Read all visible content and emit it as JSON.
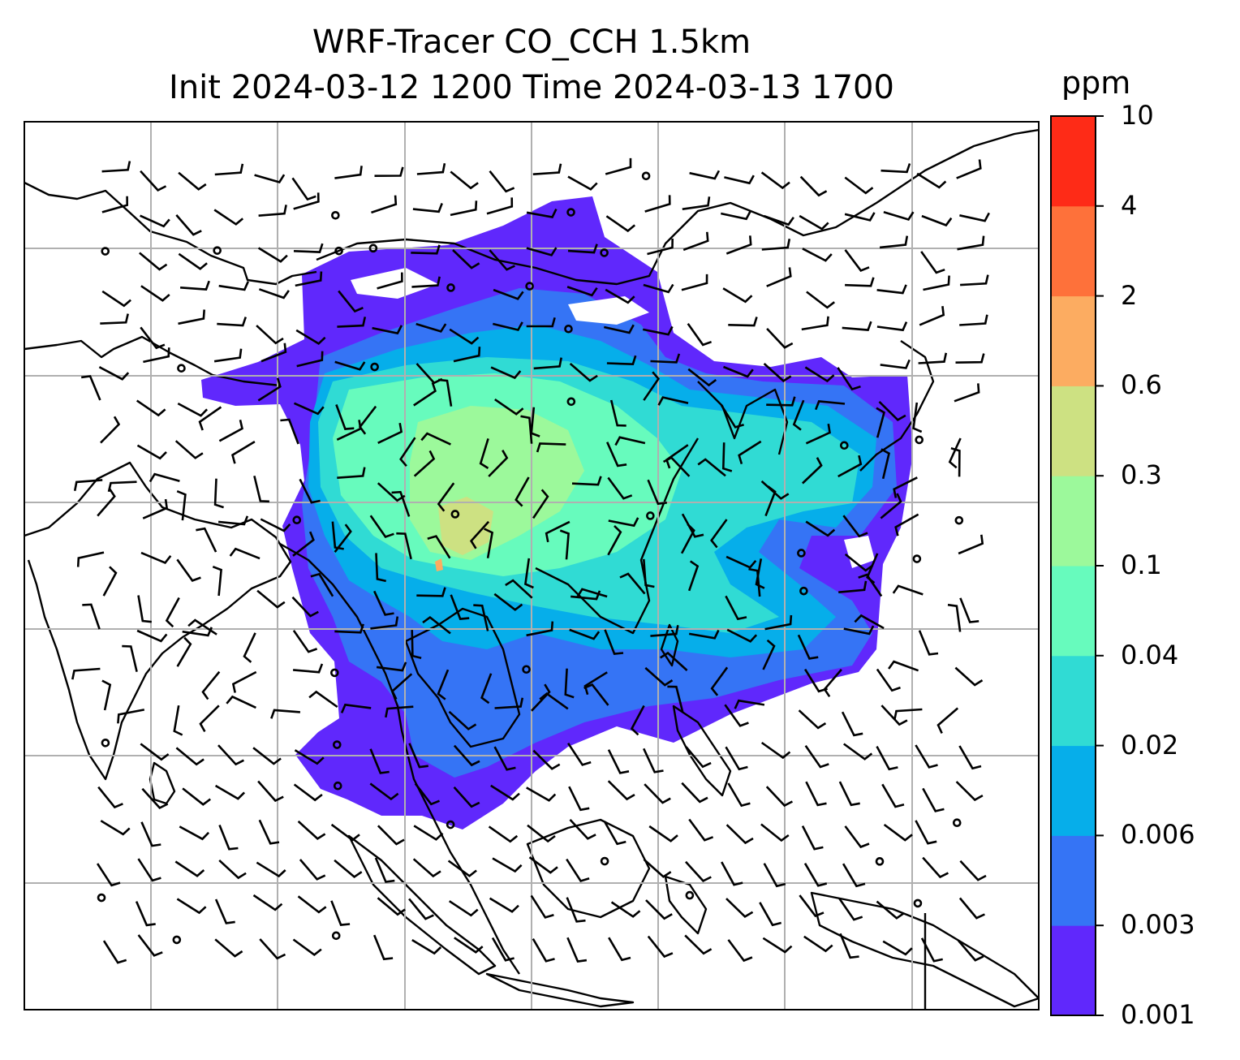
{
  "title": {
    "line1": "WRF-Tracer CO_CCH 1.5km",
    "line2": "Init 2024-03-12 1200 Time 2024-03-13 1700"
  },
  "colorbar": {
    "unit": "ppm",
    "levels": [
      "0.001",
      "0.003",
      "0.006",
      "0.02",
      "0.04",
      "0.1",
      "0.3",
      "0.6",
      "2",
      "4",
      "10"
    ],
    "colors": [
      "#6028fc",
      "#3574f5",
      "#06aeea",
      "#30dbd4",
      "#67fbbd",
      "#9cf99b",
      "#cde182",
      "#fcac61",
      "#fe713a",
      "#fe2b17"
    ]
  },
  "map": {
    "gridlines": true,
    "grid_color": "#b0b0b0",
    "coastline_color": "#000000",
    "wind_barbs": true
  }
}
